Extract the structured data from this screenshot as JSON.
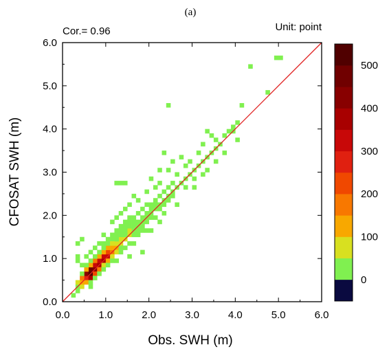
{
  "panel_label": "(a)",
  "annotations": {
    "correlation": "Cor.= 0.96",
    "unit": "Unit: point"
  },
  "chart_data": {
    "type": "heatmap",
    "xlabel": "Obs. SWH (m)",
    "ylabel": "CFOSAT SWH (m)",
    "xlim": [
      0,
      6
    ],
    "ylim": [
      0,
      6
    ],
    "xticks": [
      "0.0",
      "1.0",
      "2.0",
      "3.0",
      "4.0",
      "5.0",
      "6.0"
    ],
    "yticks": [
      "0.0",
      "1.0",
      "2.0",
      "3.0",
      "4.0",
      "5.0",
      "6.0"
    ],
    "bin_size": 0.1,
    "reference_line": {
      "from": [
        0,
        0
      ],
      "to": [
        6,
        6
      ],
      "color": "#e02020"
    },
    "colorbar": {
      "levels": [
        -50,
        0,
        50,
        100,
        150,
        200,
        250,
        300,
        350,
        400,
        450,
        500,
        550
      ],
      "tick_labels": [
        "0",
        "100",
        "200",
        "300",
        "400",
        "500"
      ],
      "tick_values": [
        0,
        100,
        200,
        300,
        400,
        500
      ],
      "colors": [
        "#0a0a40",
        "#80f050",
        "#d8e020",
        "#f8a800",
        "#f87800",
        "#f04800",
        "#e02010",
        "#c80808",
        "#a80000",
        "#880000",
        "#700000",
        "#500000"
      ]
    },
    "cells": [
      [
        0.3,
        1.3,
        5
      ],
      [
        0.3,
        0.9,
        10
      ],
      [
        0.4,
        0.8,
        25
      ],
      [
        0.3,
        0.3,
        40
      ],
      [
        0.3,
        0.4,
        80
      ],
      [
        0.4,
        0.3,
        60
      ],
      [
        0.4,
        0.4,
        110
      ],
      [
        0.5,
        0.5,
        260
      ],
      [
        0.5,
        0.6,
        420
      ],
      [
        0.6,
        0.6,
        520
      ],
      [
        0.6,
        0.5,
        380
      ],
      [
        0.6,
        0.7,
        460
      ],
      [
        0.7,
        0.7,
        440
      ],
      [
        0.7,
        0.8,
        300
      ],
      [
        0.8,
        0.8,
        380
      ],
      [
        0.8,
        0.9,
        320
      ],
      [
        0.9,
        0.9,
        360
      ],
      [
        0.9,
        1.0,
        300
      ],
      [
        1.0,
        1.0,
        340
      ],
      [
        1.0,
        1.1,
        240
      ],
      [
        1.1,
        1.1,
        180
      ],
      [
        1.1,
        1.2,
        140
      ],
      [
        0.7,
        0.6,
        200
      ],
      [
        0.8,
        0.7,
        160
      ],
      [
        0.5,
        0.4,
        120
      ],
      [
        0.4,
        0.5,
        160
      ],
      [
        0.5,
        0.7,
        140
      ],
      [
        0.6,
        0.8,
        120
      ],
      [
        0.7,
        0.9,
        160
      ],
      [
        0.8,
        1.0,
        120
      ],
      [
        0.9,
        1.1,
        100
      ],
      [
        1.0,
        1.2,
        110
      ],
      [
        1.2,
        1.2,
        120
      ],
      [
        1.2,
        1.3,
        90
      ],
      [
        1.3,
        1.3,
        80
      ],
      [
        1.3,
        1.4,
        60
      ],
      [
        1.4,
        1.4,
        70
      ],
      [
        1.5,
        1.5,
        60
      ],
      [
        1.4,
        1.5,
        40
      ],
      [
        1.5,
        1.6,
        50
      ],
      [
        1.6,
        1.6,
        40
      ],
      [
        1.7,
        1.7,
        40
      ],
      [
        1.8,
        1.8,
        30
      ],
      [
        1.7,
        1.8,
        20
      ],
      [
        1.6,
        1.7,
        30
      ],
      [
        1.8,
        1.9,
        20
      ],
      [
        1.9,
        1.9,
        20
      ],
      [
        2.0,
        2.0,
        20
      ],
      [
        2.0,
        1.9,
        10
      ],
      [
        1.1,
        1.0,
        90
      ],
      [
        1.2,
        1.1,
        60
      ],
      [
        1.3,
        1.2,
        40
      ],
      [
        1.0,
        0.9,
        130
      ],
      [
        0.9,
        0.8,
        90
      ],
      [
        0.6,
        0.4,
        40
      ],
      [
        0.7,
        0.5,
        30
      ],
      [
        0.8,
        0.6,
        30
      ],
      [
        0.9,
        0.7,
        20
      ],
      [
        1.0,
        0.8,
        20
      ],
      [
        1.1,
        0.9,
        10
      ],
      [
        1.2,
        0.9,
        10
      ],
      [
        0.4,
        0.6,
        30
      ],
      [
        0.5,
        0.8,
        25
      ],
      [
        0.6,
        0.9,
        20
      ],
      [
        0.7,
        1.0,
        15
      ],
      [
        0.8,
        1.1,
        15
      ],
      [
        0.9,
        1.2,
        20
      ],
      [
        1.0,
        1.3,
        10
      ],
      [
        1.1,
        1.4,
        15
      ],
      [
        1.2,
        1.5,
        10
      ],
      [
        1.3,
        1.6,
        10
      ],
      [
        1.4,
        1.7,
        10
      ],
      [
        1.5,
        1.8,
        15
      ],
      [
        1.6,
        1.9,
        10
      ],
      [
        1.7,
        2.0,
        10
      ],
      [
        1.8,
        2.1,
        10
      ],
      [
        1.9,
        2.2,
        10
      ],
      [
        2.0,
        2.1,
        10
      ],
      [
        2.1,
        2.1,
        15
      ],
      [
        2.1,
        2.2,
        10
      ],
      [
        2.2,
        2.2,
        10
      ],
      [
        2.3,
        2.3,
        10
      ],
      [
        2.2,
        2.4,
        10
      ],
      [
        2.4,
        2.4,
        10
      ],
      [
        2.5,
        2.5,
        10
      ],
      [
        2.4,
        2.6,
        10
      ],
      [
        2.6,
        2.6,
        10
      ],
      [
        2.5,
        2.7,
        10
      ],
      [
        2.7,
        2.7,
        10
      ],
      [
        2.8,
        2.8,
        10
      ],
      [
        2.6,
        2.9,
        10
      ],
      [
        2.9,
        2.9,
        10
      ],
      [
        3.0,
        3.0,
        10
      ],
      [
        3.1,
        3.1,
        10
      ],
      [
        3.2,
        3.2,
        10
      ],
      [
        3.3,
        3.3,
        10
      ],
      [
        3.0,
        2.8,
        10
      ],
      [
        2.8,
        3.1,
        10
      ],
      [
        2.4,
        3.0,
        5
      ],
      [
        2.7,
        3.3,
        5
      ],
      [
        2.5,
        3.2,
        5
      ],
      [
        3.4,
        3.4,
        5
      ],
      [
        3.5,
        3.5,
        10
      ],
      [
        3.5,
        3.7,
        5
      ],
      [
        3.6,
        3.6,
        10
      ],
      [
        3.7,
        3.8,
        5
      ],
      [
        3.8,
        3.9,
        10
      ],
      [
        3.9,
        3.9,
        5
      ],
      [
        3.9,
        4.0,
        5
      ],
      [
        3.4,
        3.8,
        5
      ],
      [
        3.3,
        3.9,
        5
      ],
      [
        3.2,
        3.6,
        5
      ],
      [
        3.1,
        3.4,
        5
      ],
      [
        4.0,
        4.1,
        5
      ],
      [
        4.1,
        4.5,
        5
      ],
      [
        4.3,
        5.4,
        5
      ],
      [
        4.9,
        5.6,
        5
      ],
      [
        5.0,
        5.6,
        5
      ],
      [
        4.7,
        4.8,
        5
      ],
      [
        2.4,
        4.5,
        5
      ],
      [
        1.2,
        2.7,
        5
      ],
      [
        1.3,
        2.7,
        5
      ],
      [
        1.4,
        2.7,
        5
      ],
      [
        2.8,
        2.6,
        5
      ],
      [
        2.1,
        2.6,
        5
      ],
      [
        3.3,
        3.0,
        5
      ],
      [
        2.2,
        3.0,
        5
      ],
      [
        2.3,
        2.5,
        5
      ],
      [
        2.3,
        2.0,
        5
      ],
      [
        2.1,
        1.9,
        5
      ],
      [
        1.9,
        1.6,
        5
      ],
      [
        1.7,
        1.5,
        5
      ],
      [
        1.5,
        1.3,
        5
      ],
      [
        1.4,
        1.2,
        5
      ],
      [
        1.3,
        1.1,
        5
      ],
      [
        0.4,
        1.4,
        5
      ],
      [
        0.6,
        1.1,
        5
      ],
      [
        0.3,
        1.0,
        5
      ],
      [
        0.5,
        1.0,
        5
      ],
      [
        1.5,
        1.0,
        5
      ],
      [
        1.6,
        1.3,
        5
      ],
      [
        1.8,
        1.6,
        5
      ],
      [
        0.2,
        0.1,
        5
      ],
      [
        0.3,
        0.2,
        5
      ],
      [
        0.6,
        0.3,
        10
      ],
      [
        1.8,
        1.1,
        5
      ],
      [
        2.0,
        1.6,
        5
      ],
      [
        2.2,
        1.8,
        5
      ],
      [
        2.6,
        2.2,
        5
      ],
      [
        3.0,
        2.6,
        5
      ],
      [
        2.9,
        3.2,
        5
      ],
      [
        3.2,
        2.9,
        5
      ],
      [
        3.5,
        3.2,
        5
      ],
      [
        3.7,
        3.4,
        5
      ],
      [
        4.0,
        3.7,
        5
      ],
      [
        2.3,
        3.4,
        5
      ],
      [
        2.0,
        2.8,
        5
      ],
      [
        1.9,
        2.5,
        5
      ],
      [
        1.6,
        2.4,
        5
      ],
      [
        1.5,
        2.2,
        5
      ],
      [
        1.3,
        2.0,
        5
      ],
      [
        1.1,
        1.8,
        5
      ],
      [
        0.9,
        1.5,
        5
      ],
      [
        0.8,
        1.3,
        5
      ],
      [
        0.7,
        1.2,
        5
      ],
      [
        1.2,
        1.9,
        5
      ],
      [
        1.4,
        2.1,
        5
      ],
      [
        1.7,
        2.3,
        5
      ],
      [
        2.2,
        2.7,
        5
      ],
      [
        1.5,
        1.9,
        20
      ],
      [
        1.4,
        1.8,
        15
      ],
      [
        1.6,
        1.8,
        25
      ],
      [
        1.3,
        1.7,
        10
      ],
      [
        1.2,
        1.6,
        10
      ],
      [
        1.1,
        1.5,
        10
      ],
      [
        1.0,
        1.4,
        10
      ],
      [
        0.9,
        1.3,
        10
      ],
      [
        1.6,
        1.5,
        30
      ],
      [
        1.7,
        1.6,
        20
      ],
      [
        1.8,
        1.7,
        20
      ],
      [
        1.9,
        1.8,
        15
      ],
      [
        1.2,
        1.4,
        40
      ],
      [
        1.1,
        1.3,
        50
      ],
      [
        1.4,
        1.6,
        30
      ],
      [
        1.3,
        1.5,
        40
      ],
      [
        1.5,
        1.7,
        25
      ],
      [
        1.9,
        2.0,
        15
      ],
      [
        2.0,
        2.2,
        10
      ],
      [
        2.1,
        2.3,
        10
      ],
      [
        2.2,
        2.1,
        10
      ],
      [
        2.3,
        2.2,
        10
      ],
      [
        2.4,
        2.3,
        5
      ],
      [
        2.5,
        2.4,
        5
      ]
    ]
  }
}
